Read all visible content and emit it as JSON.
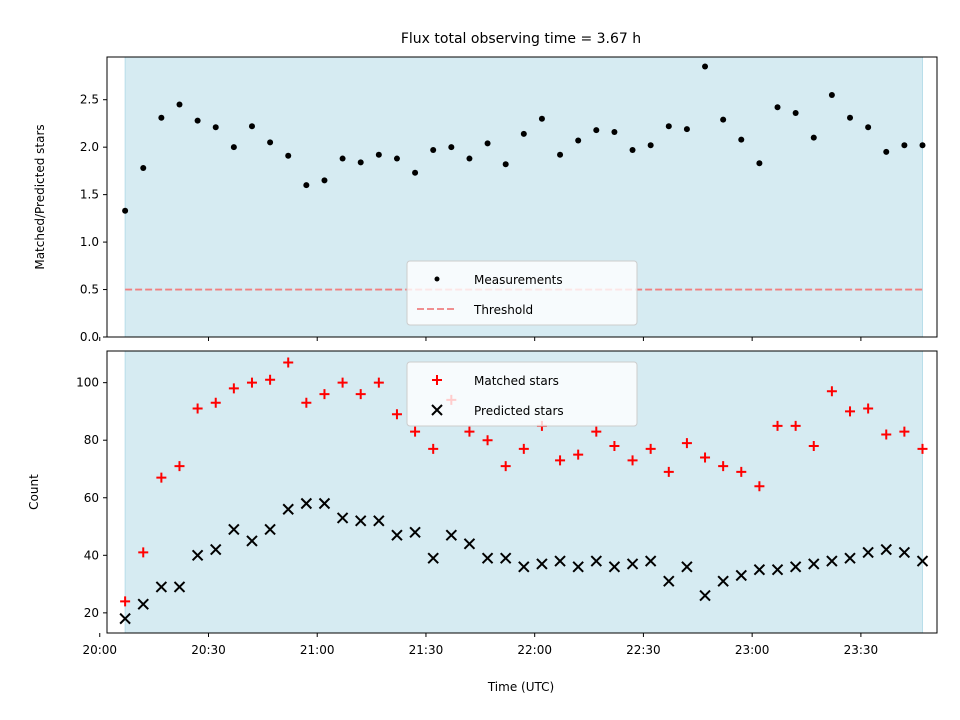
{
  "title": "Flux total observing time = 3.67 h",
  "colors": {
    "shade": "#add8e6",
    "measurements": "#000000",
    "threshold": "#f08080",
    "matched": "#ff0000",
    "predicted": "#000000"
  },
  "chart_data": [
    {
      "type": "scatter",
      "panel": "top",
      "ylabel": "Matched/Predicted stars",
      "ylim": [
        0,
        2.95
      ],
      "yticks": [
        0.0,
        0.5,
        1.0,
        1.5,
        2.0,
        2.5
      ],
      "ytick_labels": [
        "0.0",
        "0.5",
        "1.0",
        "1.5",
        "2.0",
        "2.5"
      ],
      "shaded_x_range": [
        "20:07",
        "23:47"
      ],
      "legend": {
        "placement": "lower center",
        "entries": [
          "Measurements",
          "Threshold"
        ]
      },
      "threshold": {
        "name": "Threshold",
        "value": 0.5,
        "style": "dashed"
      },
      "series": [
        {
          "name": "Measurements",
          "marker": "dot",
          "x": [
            "20:07",
            "20:12",
            "20:17",
            "20:22",
            "20:27",
            "20:32",
            "20:37",
            "20:42",
            "20:47",
            "20:52",
            "20:57",
            "21:02",
            "21:07",
            "21:12",
            "21:17",
            "21:22",
            "21:27",
            "21:32",
            "21:37",
            "21:42",
            "21:47",
            "21:52",
            "21:57",
            "22:02",
            "22:07",
            "22:12",
            "22:17",
            "22:22",
            "22:27",
            "22:32",
            "22:37",
            "22:42",
            "22:47",
            "22:52",
            "22:57",
            "23:02",
            "23:07",
            "23:12",
            "23:17",
            "23:22",
            "23:27",
            "23:32",
            "23:37",
            "23:42",
            "23:47"
          ],
          "values": [
            1.33,
            1.78,
            2.31,
            2.45,
            2.28,
            2.21,
            2.0,
            2.22,
            2.05,
            1.91,
            1.6,
            1.65,
            1.88,
            1.84,
            1.92,
            1.88,
            1.73,
            1.97,
            2.0,
            1.88,
            2.04,
            1.82,
            2.14,
            2.3,
            1.92,
            2.07,
            2.18,
            2.16,
            1.97,
            2.02,
            2.22,
            2.19,
            2.85,
            2.29,
            2.08,
            1.83,
            2.42,
            2.36,
            2.1,
            2.55,
            2.31,
            2.21,
            1.95,
            2.02,
            2.02
          ]
        }
      ]
    },
    {
      "type": "scatter",
      "panel": "bottom",
      "xlabel": "Time (UTC)",
      "ylabel": "Count",
      "ylim": [
        13,
        111
      ],
      "yticks": [
        20,
        40,
        60,
        80,
        100
      ],
      "ytick_labels": [
        "20",
        "40",
        "60",
        "80",
        "100"
      ],
      "xlim": [
        "20:02",
        "23:51"
      ],
      "xticks": [
        "20:00",
        "20:30",
        "21:00",
        "21:30",
        "22:00",
        "22:30",
        "23:00",
        "23:30"
      ],
      "shaded_x_range": [
        "20:07",
        "23:47"
      ],
      "legend": {
        "placement": "upper center",
        "entries": [
          "Matched stars",
          "Predicted stars"
        ]
      },
      "series": [
        {
          "name": "Matched stars",
          "marker": "plus",
          "x": [
            "20:07",
            "20:12",
            "20:17",
            "20:22",
            "20:27",
            "20:32",
            "20:37",
            "20:42",
            "20:47",
            "20:52",
            "20:57",
            "21:02",
            "21:07",
            "21:12",
            "21:17",
            "21:22",
            "21:27",
            "21:32",
            "21:37",
            "21:42",
            "21:47",
            "21:52",
            "21:57",
            "22:02",
            "22:07",
            "22:12",
            "22:17",
            "22:22",
            "22:27",
            "22:32",
            "22:37",
            "22:42",
            "22:47",
            "22:52",
            "22:57",
            "23:02",
            "23:07",
            "23:12",
            "23:17",
            "23:22",
            "23:27",
            "23:32",
            "23:37",
            "23:42",
            "23:47"
          ],
          "values": [
            24,
            41,
            67,
            71,
            91,
            93,
            98,
            100,
            101,
            107,
            93,
            96,
            100,
            96,
            100,
            89,
            83,
            77,
            94,
            83,
            80,
            71,
            77,
            85,
            73,
            75,
            83,
            78,
            73,
            77,
            69,
            79,
            74,
            71,
            69,
            64,
            85,
            85,
            78,
            97,
            90,
            91,
            82,
            83,
            77
          ]
        },
        {
          "name": "Predicted stars",
          "marker": "x",
          "x": [
            "20:07",
            "20:12",
            "20:17",
            "20:22",
            "20:27",
            "20:32",
            "20:37",
            "20:42",
            "20:47",
            "20:52",
            "20:57",
            "21:02",
            "21:07",
            "21:12",
            "21:17",
            "21:22",
            "21:27",
            "21:32",
            "21:37",
            "21:42",
            "21:47",
            "21:52",
            "21:57",
            "22:02",
            "22:07",
            "22:12",
            "22:17",
            "22:22",
            "22:27",
            "22:32",
            "22:37",
            "22:42",
            "22:47",
            "22:52",
            "22:57",
            "23:02",
            "23:07",
            "23:12",
            "23:17",
            "23:22",
            "23:27",
            "23:32",
            "23:37",
            "23:42",
            "23:47"
          ],
          "values": [
            18,
            23,
            29,
            29,
            40,
            42,
            49,
            45,
            49,
            56,
            58,
            58,
            53,
            52,
            52,
            47,
            48,
            39,
            47,
            44,
            39,
            39,
            36,
            37,
            38,
            36,
            38,
            36,
            37,
            38,
            31,
            36,
            26,
            31,
            33,
            35,
            35,
            36,
            37,
            38,
            39,
            41,
            42,
            41,
            38
          ]
        }
      ]
    }
  ]
}
